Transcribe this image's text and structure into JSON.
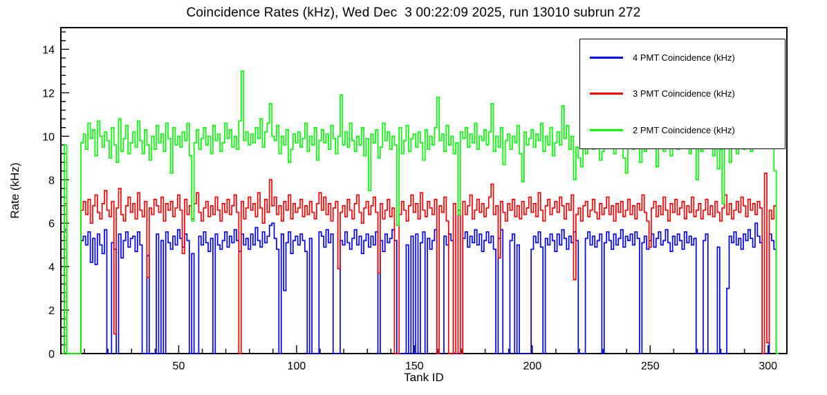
{
  "page": {
    "background": "#ffffff"
  },
  "chart_data": {
    "type": "line",
    "style": "step-histogram",
    "title": "Coincidence Rates (kHz), Wed Dec  3 00:22:09 2025, run 13010 subrun 272",
    "xlabel": "Tank ID",
    "ylabel": "Rate (kHz)",
    "xlim": [
      0,
      308
    ],
    "ylim": [
      0,
      15
    ],
    "x_ticks": [
      50,
      100,
      150,
      200,
      250,
      300
    ],
    "y_ticks": [
      0,
      2,
      4,
      6,
      8,
      10,
      12,
      14
    ],
    "x_start": 1,
    "grid": false,
    "legend_position": "top-right",
    "series": [
      {
        "id": "4pmt",
        "name": "4 PMT Coincidence (kHz)",
        "color": "#0000ff",
        "values": [
          0,
          5.7,
          0,
          0,
          0,
          0,
          0,
          0,
          5.2,
          5.4,
          5.0,
          5.6,
          4.2,
          5.3,
          4.1,
          5.5,
          5.0,
          4.6,
          5.7,
          0,
          0,
          5.1,
          4.8,
          0,
          5.5,
          4.4,
          5.2,
          5.6,
          4.9,
          5.3,
          5.4,
          4.7,
          5.6,
          5.0,
          0,
          0,
          4.5,
          0,
          0,
          0,
          5.5,
          0,
          5.2,
          0,
          5.6,
          5.1,
          4.8,
          5.4,
          5.0,
          5.7,
          5.3,
          4.9,
          5.5,
          5.2,
          0,
          4.6,
          0,
          0,
          5.4,
          5.0,
          5.6,
          5.1,
          4.7,
          5.3,
          0,
          5.5,
          5.0,
          4.8,
          5.2,
          5.6,
          4.9,
          5.4,
          5.1,
          5.7,
          5.2,
          4.7,
          5.5,
          5.0,
          5.3,
          4.8,
          5.5,
          5.0,
          5.8,
          5.2,
          4.9,
          5.6,
          5.1,
          5.4,
          5.9,
          6.0,
          5.3,
          4.8,
          0,
          5.5,
          2.9,
          5.1,
          5.6,
          4.6,
          5.2,
          5.4,
          5.0,
          5.5,
          5.2,
          4.7,
          0,
          5.3,
          0,
          0,
          0,
          5.6,
          5.4,
          4.9,
          5.7,
          5.1,
          5.5,
          0,
          0,
          0,
          5.2,
          5.0,
          5.6,
          5.1,
          4.8,
          5.3,
          5.7,
          5.0,
          5.4,
          4.6,
          5.2,
          5.5,
          4.9,
          5.4,
          5.0,
          5.6,
          0,
          5.2,
          4.7,
          5.5,
          5.1,
          5.3,
          5.7,
          5.2,
          0,
          0,
          0,
          0,
          5.0,
          0,
          5.4,
          0,
          5.5,
          0,
          5.1,
          5.6,
          0,
          5.3,
          4.8,
          5.2,
          5.7,
          0,
          0,
          0,
          5.4,
          5.0,
          5.5,
          5.2,
          0,
          0,
          0,
          0,
          5.3,
          5.6,
          4.9,
          5.4,
          5.1,
          5.7,
          5.0,
          5.5,
          4.7,
          5.2,
          5.6,
          5.1,
          5.4,
          4.8,
          0,
          5.3,
          5.7,
          0,
          0,
          0,
          5.2,
          5.5,
          0,
          5.0,
          0,
          0,
          0,
          0,
          0,
          4.8,
          5.4,
          5.1,
          5.6,
          4.9,
          0,
          5.3,
          5.0,
          5.5,
          5.2,
          4.7,
          5.5,
          5.0,
          5.7,
          5.3,
          4.8,
          5.4,
          5.1,
          5.6,
          5.2,
          0,
          0,
          0,
          5.3,
          5.6,
          5.0,
          5.4,
          4.9,
          5.2,
          5.5,
          0,
          5.1,
          5.6,
          5.2,
          4.8,
          5.5,
          5.0,
          5.3,
          5.7,
          4.9,
          5.4,
          5.2,
          5.5,
          5.0,
          5.6,
          5.3,
          0,
          5.1,
          5.4,
          4.8,
          5.2,
          5.5,
          4.9,
          5.3,
          5.6,
          5.0,
          5.2,
          5.7,
          5.1,
          4.7,
          5.4,
          5.0,
          5.5,
          5.2,
          4.8,
          5.6,
          5.1,
          5.4,
          5.0,
          5.3,
          0,
          0,
          0,
          5.2,
          5.5,
          0,
          0,
          0,
          0,
          4.9,
          0,
          0,
          0,
          3.0,
          5.4,
          5.1,
          5.6,
          5.0,
          5.3,
          4.8,
          5.5,
          5.2,
          5.7,
          5.3,
          4.9,
          6.0,
          5.4,
          5.1,
          0,
          0,
          0,
          5.5,
          5.2,
          4.8,
          0
        ]
      },
      {
        "id": "3pmt",
        "name": "3 PMT Coincidence (kHz)",
        "color": "#ff0000",
        "values": [
          0,
          6.9,
          0,
          0,
          0,
          0,
          0,
          0,
          6.6,
          7.0,
          6.4,
          7.1,
          6.0,
          6.8,
          7.3,
          6.5,
          6.2,
          6.9,
          7.5,
          6.6,
          6.3,
          7.0,
          0.9,
          6.7,
          7.6,
          6.4,
          6.1,
          6.8,
          7.2,
          6.5,
          6.9,
          6.2,
          7.4,
          6.6,
          6.3,
          7.0,
          3.5,
          6.7,
          6.4,
          7.1,
          6.8,
          6.5,
          7.2,
          6.1,
          6.9,
          6.6,
          7.0,
          6.3,
          6.7,
          7.3,
          6.6,
          4.6,
          7.1,
          6.4,
          6.8,
          6.2,
          6.9,
          7.4,
          6.5,
          6.1,
          6.7,
          7.0,
          6.3,
          6.8,
          6.4,
          7.2,
          6.6,
          6.1,
          6.9,
          6.5,
          7.1,
          6.4,
          6.8,
          7.3,
          6.5,
          0,
          7.0,
          6.2,
          6.7,
          7.2,
          6.6,
          6.9,
          6.3,
          7.4,
          6.7,
          6.0,
          7.1,
          6.5,
          8.0,
          6.8,
          7.2,
          6.4,
          6.8,
          6.1,
          7.0,
          6.6,
          7.3,
          6.2,
          6.9,
          6.5,
          6.7,
          7.1,
          6.3,
          6.8,
          6.4,
          7.0,
          6.5,
          6.2,
          6.9,
          7.4,
          6.6,
          7.2,
          6.4,
          6.9,
          6.1,
          6.7,
          7.0,
          3.9,
          6.5,
          6.8,
          6.3,
          7.1,
          6.6,
          6.2,
          6.9,
          7.3,
          6.5,
          6.0,
          6.7,
          7.0,
          6.4,
          6.8,
          7.2,
          6.5,
          3.7,
          6.9,
          6.2,
          6.6,
          7.1,
          6.3,
          6.7,
          0,
          0,
          6.4,
          7.0,
          6.6,
          6.1,
          6.8,
          7.3,
          6.5,
          6.9,
          6.2,
          7.4,
          6.6,
          6.3,
          7.0,
          6.7,
          6.4,
          7.1,
          0,
          6.8,
          6.5,
          7.2,
          6.1,
          0,
          0,
          6.9,
          0,
          6.6,
          0,
          7.0,
          6.4,
          6.8,
          7.3,
          6.2,
          6.6,
          7.1,
          6.5,
          6.9,
          6.3,
          6.7,
          7.2,
          7.8,
          6.4,
          6.8,
          4.4,
          7.0,
          6.5,
          6.1,
          6.9,
          6.6,
          7.1,
          6.3,
          6.8,
          6.2,
          7.0,
          6.4,
          6.7,
          7.2,
          6.5,
          6.9,
          6.3,
          7.4,
          6.6,
          6.1,
          6.8,
          7.1,
          6.4,
          6.7,
          7.0,
          6.5,
          7.2,
          6.8,
          6.2,
          6.9,
          6.6,
          7.3,
          3.4,
          6.4,
          6.7,
          6.1,
          6.8,
          7.0,
          6.3,
          6.6,
          7.1,
          6.5,
          6.2,
          6.9,
          6.4,
          6.7,
          7.2,
          6.4,
          6.8,
          6.1,
          6.9,
          6.5,
          7.0,
          6.3,
          6.6,
          7.1,
          6.4,
          6.8,
          6.2,
          6.9,
          6.6,
          7.3,
          6.5,
          6.1,
          4.9,
          6.7,
          7.0,
          6.3,
          6.8,
          6.4,
          7.2,
          6.6,
          6.1,
          6.9,
          6.5,
          7.1,
          6.4,
          6.7,
          7.0,
          6.2,
          6.8,
          6.5,
          7.2,
          6.3,
          6.6,
          6.9,
          6.2,
          6.6,
          7.1,
          6.4,
          6.8,
          6.3,
          7.0,
          6.5,
          6.1,
          6.7,
          7.3,
          6.4,
          6.9,
          6.2,
          6.6,
          7.0,
          6.5,
          7.2,
          6.8,
          6.3,
          7.1,
          6.6,
          6.9,
          6.4,
          7.0,
          6.7,
          0,
          8.3,
          0.5,
          6.6,
          6.2,
          6.8,
          0
        ]
      },
      {
        "id": "2pmt",
        "name": "2 PMT Coincidence (kHz)",
        "color": "#00ff00",
        "values": [
          0,
          9.6,
          0,
          0,
          0,
          0,
          0,
          0,
          9.7,
          10.1,
          9.4,
          10.6,
          9.9,
          10.3,
          9.1,
          10.7,
          10.0,
          9.5,
          10.2,
          9.8,
          9.0,
          10.4,
          9.6,
          8.8,
          10.8,
          9.3,
          9.9,
          10.5,
          9.2,
          9.7,
          10.2,
          9.5,
          10.7,
          9.8,
          9.2,
          10.3,
          9.6,
          8.9,
          10.0,
          9.4,
          10.5,
          9.7,
          10.1,
          9.3,
          10.6,
          9.9,
          8.3,
          10.4,
          9.6,
          10.0,
          9.5,
          10.2,
          9.8,
          10.6,
          9.1,
          6.1,
          9.7,
          10.3,
          9.4,
          9.9,
          10.4,
          9.6,
          10.0,
          9.2,
          10.5,
          9.8,
          10.1,
          9.3,
          9.7,
          10.6,
          9.9,
          10.3,
          9.5,
          10.0,
          9.4,
          10.7,
          13.0,
          9.8,
          10.2,
          9.6,
          10.1,
          9.7,
          10.4,
          9.9,
          10.8,
          9.5,
          10.2,
          10.6,
          11.5,
          10.0,
          9.8,
          10.5,
          9.2,
          10.0,
          9.6,
          10.3,
          8.8,
          9.4,
          10.1,
          9.7,
          10.2,
          9.5,
          9.9,
          10.6,
          9.3,
          10.0,
          9.6,
          10.4,
          8.9,
          9.8,
          10.3,
          9.7,
          10.1,
          9.4,
          10.5,
          9.9,
          9.2,
          10.0,
          11.9,
          9.6,
          10.2,
          9.5,
          10.6,
          9.8,
          9.3,
          10.0,
          9.6,
          10.4,
          9.1,
          9.9,
          7.5,
          10.1,
          9.7,
          10.3,
          9.0,
          9.5,
          10.6,
          9.8,
          10.2,
          9.4,
          10.0,
          9.6,
          5.9,
          10.4,
          9.2,
          9.8,
          10.5,
          9.3,
          9.9,
          10.1,
          9.5,
          10.2,
          9.7,
          8.9,
          10.3,
          9.4,
          10.0,
          9.6,
          10.4,
          11.8,
          9.8,
          10.1,
          9.3,
          10.5,
          9.6,
          10.0,
          9.2,
          9.7,
          6.4,
          10.2,
          9.9,
          10.4,
          9.5,
          10.1,
          9.7,
          10.6,
          9.4,
          10.0,
          9.8,
          10.3,
          9.6,
          10.2,
          11.5,
          9.3,
          10.0,
          9.5,
          10.4,
          8.7,
          9.8,
          10.1,
          9.4,
          10.0,
          9.7,
          10.5,
          9.2,
          7.9,
          10.2,
          9.6,
          9.9,
          10.3,
          9.5,
          10.1,
          9.8,
          10.6,
          9.3,
          10.0,
          9.6,
          10.4,
          9.1,
          9.7,
          10.2,
          9.6,
          11.4,
          9.9,
          10.5,
          9.4,
          10.0,
          8.0,
          9.5,
          9.0,
          8.6,
          9.7,
          9.2,
          10.3,
          9.8,
          9.4,
          10.0,
          9.6,
          8.9,
          9.3,
          10.1,
          9.5,
          9.9,
          10.4,
          9.2,
          9.7,
          10.2,
          9.6,
          9.0,
          8.3,
          9.8,
          10.3,
          9.4,
          10.0,
          9.6,
          8.8,
          10.1,
          9.3,
          9.9,
          10.4,
          9.5,
          10.0,
          8.6,
          9.7,
          10.2,
          9.3,
          9.8,
          10.5,
          9.1,
          9.6,
          10.0,
          9.4,
          9.9,
          10.3,
          9.6,
          10.1,
          9.2,
          9.7,
          10.4,
          8.0,
          9.8,
          9.3,
          10.0,
          9.5,
          10.2,
          9.7,
          9.1,
          9.9,
          8.5,
          9.4,
          6.9,
          9.6,
          10.1,
          8.8,
          9.5,
          10.3,
          9.2,
          9.8,
          10.0,
          9.4,
          9.7,
          10.2,
          9.3,
          9.9,
          10.6,
          9.5,
          10.8,
          11.6,
          13.1,
          12.2,
          12.5,
          9.7,
          8.4,
          0
        ]
      }
    ]
  }
}
